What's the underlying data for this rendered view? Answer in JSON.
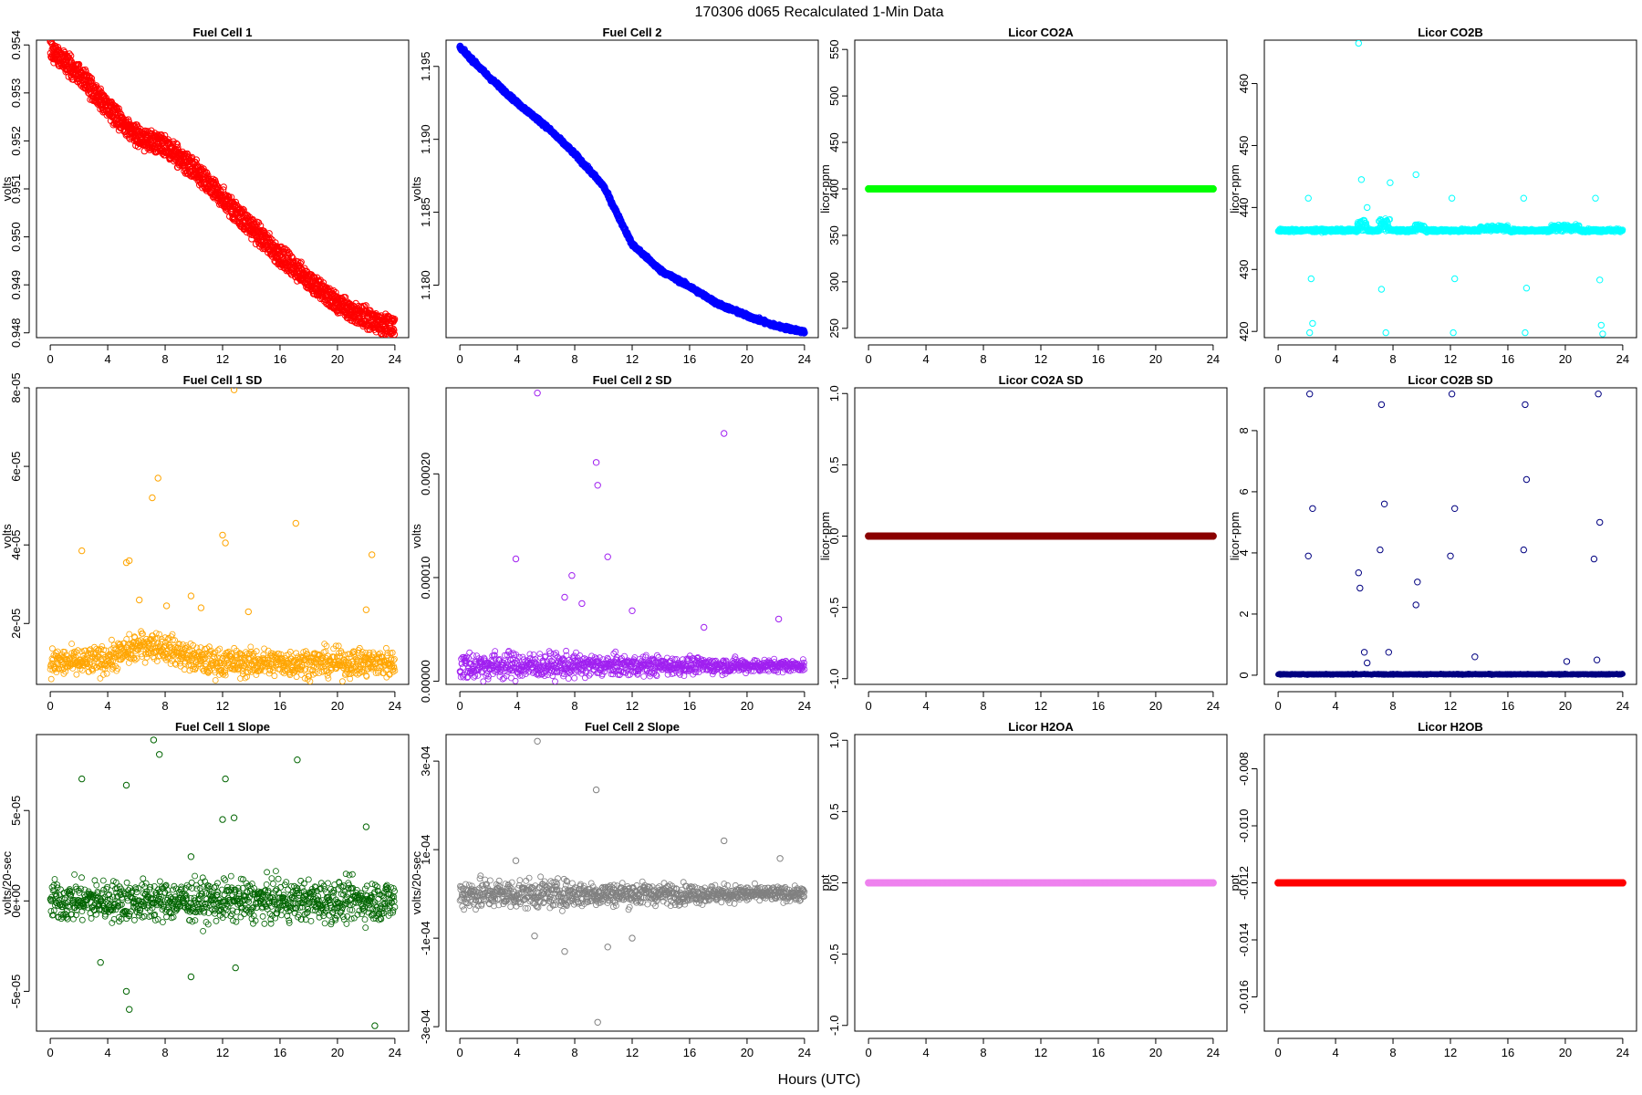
{
  "figure": {
    "title": "170306   d065   Recalculated 1-Min Data",
    "xlabel": "Hours (UTC)"
  },
  "chart_data": [
    {
      "type": "scatter",
      "title": "Fuel Cell 1",
      "xlabel": "",
      "ylabel": "volts",
      "color": "#ff0000",
      "xlim": [
        0,
        24
      ],
      "ylim": [
        0.9479,
        0.9541
      ],
      "xticks": [
        0,
        4,
        8,
        12,
        16,
        20,
        24
      ],
      "xtick_labels": [
        "0",
        "4",
        "8",
        "12",
        "16",
        "20",
        "24"
      ],
      "yticks": [
        0.948,
        0.949,
        0.95,
        0.951,
        0.952,
        0.953,
        0.954
      ],
      "ytick_labels": [
        "0.948",
        "0.949",
        "0.950",
        "0.951",
        "0.952",
        "0.953",
        "0.954"
      ],
      "series": [
        {
          "x": [
            0,
            2,
            4,
            6,
            8,
            10,
            12,
            14,
            16,
            18,
            20,
            22,
            24
          ],
          "y": [
            0.9539,
            0.9534,
            0.9527,
            0.9521,
            0.9519,
            0.9514,
            0.9508,
            0.9502,
            0.9496,
            0.9491,
            0.9486,
            0.9483,
            0.9481
          ]
        }
      ]
    },
    {
      "type": "scatter",
      "title": "Fuel Cell 2",
      "xlabel": "",
      "ylabel": "volts",
      "color": "#0000ff",
      "xlim": [
        0,
        24
      ],
      "ylim": [
        1.1764,
        1.1968
      ],
      "xticks": [
        0,
        4,
        8,
        12,
        16,
        20,
        24
      ],
      "xtick_labels": [
        "0",
        "4",
        "8",
        "12",
        "16",
        "20",
        "24"
      ],
      "yticks": [
        1.18,
        1.185,
        1.19,
        1.195
      ],
      "ytick_labels": [
        "1.180",
        "1.185",
        "1.190",
        "1.195"
      ],
      "series": [
        {
          "x": [
            0,
            2,
            4,
            6,
            8,
            10,
            12,
            14,
            16,
            18,
            20,
            22,
            24
          ],
          "y": [
            1.1963,
            1.1943,
            1.1925,
            1.1909,
            1.189,
            1.1868,
            1.1828,
            1.181,
            1.1799,
            1.1787,
            1.1779,
            1.1772,
            1.1768
          ]
        }
      ]
    },
    {
      "type": "scatter",
      "title": "Licor CO2A",
      "xlabel": "",
      "ylabel": "licor-ppm",
      "color": "#00ff00",
      "xlim": [
        0,
        24
      ],
      "ylim": [
        240,
        560
      ],
      "xticks": [
        0,
        4,
        8,
        12,
        16,
        20,
        24
      ],
      "xtick_labels": [
        "0",
        "4",
        "8",
        "12",
        "16",
        "20",
        "24"
      ],
      "yticks": [
        250,
        300,
        350,
        400,
        450,
        500,
        550
      ],
      "ytick_labels": [
        "250",
        "300",
        "350",
        "400",
        "450",
        "500",
        "550"
      ],
      "series": [
        {
          "x": [
            0,
            24
          ],
          "y": [
            400,
            400
          ]
        }
      ]
    },
    {
      "type": "scatter",
      "title": "Licor CO2B",
      "xlabel": "",
      "ylabel": "licor-ppm",
      "color": "#00ffff",
      "xlim": [
        0,
        24
      ],
      "ylim": [
        419,
        467
      ],
      "xticks": [
        0,
        4,
        8,
        12,
        16,
        20,
        24
      ],
      "xtick_labels": [
        "0",
        "4",
        "8",
        "12",
        "16",
        "20",
        "24"
      ],
      "yticks": [
        420,
        430,
        440,
        450,
        460
      ],
      "ytick_labels": [
        "420",
        "430",
        "440",
        "450",
        "460"
      ],
      "series": [
        {
          "x": [
            0,
            24
          ],
          "y": [
            436.3,
            436.3
          ]
        }
      ],
      "outliers": {
        "x": [
          2.1,
          2.3,
          2.2,
          2.4,
          5.6,
          5.8,
          6.2,
          7.2,
          7.5,
          7.8,
          9.6,
          12.1,
          12.3,
          12.2,
          17.1,
          17.3,
          17.2,
          22.1,
          22.4,
          22.5,
          22.6
        ],
        "y": [
          441.5,
          428.5,
          419.8,
          421.3,
          466.5,
          444.5,
          440.0,
          426.8,
          419.8,
          444.0,
          445.3,
          441.5,
          428.5,
          419.8,
          441.5,
          427.0,
          419.8,
          441.5,
          428.3,
          421.0,
          419.6
        ]
      }
    },
    {
      "type": "scatter",
      "title": "Fuel Cell 1 SD",
      "xlabel": "",
      "ylabel": "volts",
      "color": "#ffa500",
      "xlim": [
        0,
        24
      ],
      "ylim": [
        4.5e-06,
        8e-05
      ],
      "xticks": [
        0,
        4,
        8,
        12,
        16,
        20,
        24
      ],
      "xtick_labels": [
        "0",
        "4",
        "8",
        "12",
        "16",
        "20",
        "24"
      ],
      "yticks": [
        2e-05,
        4e-05,
        6e-05,
        8e-05
      ],
      "ytick_labels": [
        "2e-05",
        "4e-05",
        "6e-05",
        "8e-05"
      ],
      "series": [
        {
          "x": [
            0,
            24
          ],
          "y": [
            1e-05,
            1e-05
          ]
        }
      ],
      "outliers": {
        "x": [
          2.2,
          5.3,
          5.5,
          7.1,
          7.5,
          9.8,
          12.0,
          12.2,
          12.8,
          17.1,
          22.0,
          22.4,
          6.2,
          8.1,
          10.5,
          13.8
        ],
        "y": [
          3.85e-05,
          3.55e-05,
          3.6e-05,
          5.2e-05,
          5.7e-05,
          2.7e-05,
          4.25e-05,
          4.05e-05,
          7.95e-05,
          4.55e-05,
          2.35e-05,
          3.75e-05,
          2.6e-05,
          2.45e-05,
          2.4e-05,
          2.3e-05
        ]
      }
    },
    {
      "type": "scatter",
      "title": "Fuel Cell 2 SD",
      "xlabel": "",
      "ylabel": "volts",
      "color": "#a020f0",
      "xlim": [
        0,
        24
      ],
      "ylim": [
        -3e-06,
        0.000283
      ],
      "xticks": [
        0,
        4,
        8,
        12,
        16,
        20,
        24
      ],
      "xtick_labels": [
        "0",
        "4",
        "8",
        "12",
        "16",
        "20",
        "24"
      ],
      "yticks": [
        0.0,
        0.0001,
        0.0002
      ],
      "ytick_labels": [
        "0.00000",
        "0.00010",
        "0.00020"
      ],
      "series": [
        {
          "x": [
            0,
            24
          ],
          "y": [
            1.5e-05,
            1.5e-05
          ]
        }
      ],
      "outliers": {
        "x": [
          5.4,
          9.5,
          9.6,
          18.4,
          3.9,
          7.8,
          10.3,
          7.3,
          8.5,
          12.0,
          17.0,
          22.2
        ],
        "y": [
          0.000278,
          0.000211,
          0.000189,
          0.000239,
          0.000118,
          0.000102,
          0.00012,
          8.1e-05,
          7.5e-05,
          6.8e-05,
          5.2e-05,
          6e-05
        ]
      }
    },
    {
      "type": "scatter",
      "title": "Licor CO2A SD",
      "xlabel": "",
      "ylabel": "licor-ppm",
      "color": "#8b0000",
      "xlim": [
        0,
        24
      ],
      "ylim": [
        -1.04,
        1.04
      ],
      "xticks": [
        0,
        4,
        8,
        12,
        16,
        20,
        24
      ],
      "xtick_labels": [
        "0",
        "4",
        "8",
        "12",
        "16",
        "20",
        "24"
      ],
      "yticks": [
        -1.0,
        -0.5,
        0.0,
        0.5,
        1.0
      ],
      "ytick_labels": [
        "-1.0",
        "-0.5",
        "0.0",
        "0.5",
        "1.0"
      ],
      "series": [
        {
          "x": [
            0,
            24
          ],
          "y": [
            0,
            0
          ]
        }
      ]
    },
    {
      "type": "scatter",
      "title": "Licor CO2B SD",
      "xlabel": "",
      "ylabel": "licor-ppm",
      "color": "#000080",
      "xlim": [
        0,
        24
      ],
      "ylim": [
        -0.3,
        9.4
      ],
      "xticks": [
        0,
        4,
        8,
        12,
        16,
        20,
        24
      ],
      "xtick_labels": [
        "0",
        "4",
        "8",
        "12",
        "16",
        "20",
        "24"
      ],
      "yticks": [
        0,
        2,
        4,
        6,
        8
      ],
      "ytick_labels": [
        "0",
        "2",
        "4",
        "6",
        "8"
      ],
      "series": [
        {
          "x": [
            0,
            24
          ],
          "y": [
            0.03,
            0.03
          ]
        }
      ],
      "outliers": {
        "x": [
          2.1,
          2.2,
          2.4,
          5.6,
          5.7,
          6.0,
          6.2,
          7.1,
          7.2,
          7.4,
          7.7,
          9.6,
          9.7,
          12.0,
          12.1,
          12.3,
          13.7,
          17.1,
          17.2,
          17.3,
          20.1,
          22.0,
          22.3,
          22.4,
          22.2
        ],
        "y": [
          3.9,
          9.2,
          5.45,
          3.35,
          2.85,
          0.75,
          0.4,
          4.1,
          8.85,
          5.6,
          0.75,
          2.3,
          3.05,
          3.9,
          9.2,
          5.45,
          0.6,
          4.1,
          8.85,
          6.4,
          0.45,
          3.8,
          9.2,
          5.0,
          0.5
        ]
      }
    },
    {
      "type": "scatter",
      "title": "Fuel Cell 1 Slope",
      "xlabel": "",
      "ylabel": "volts/20-sec",
      "color": "#006400",
      "xlim": [
        0,
        24
      ],
      "ylim": [
        -7.2e-05,
        9.2e-05
      ],
      "xticks": [
        0,
        4,
        8,
        12,
        16,
        20,
        24
      ],
      "xtick_labels": [
        "0",
        "4",
        "8",
        "12",
        "16",
        "20",
        "24"
      ],
      "yticks": [
        -5e-05,
        0.0,
        5e-05
      ],
      "ytick_labels": [
        "-5e-05",
        "0e+00",
        "5e-05"
      ],
      "series": [
        {
          "x": [
            0,
            24
          ],
          "y": [
            0.0,
            0.0
          ]
        }
      ],
      "outliers": {
        "x": [
          2.2,
          5.3,
          7.2,
          7.6,
          9.8,
          12.0,
          12.2,
          12.8,
          17.2,
          22.0,
          22.6,
          5.3,
          5.5,
          3.5,
          9.8,
          12.9
        ],
        "y": [
          6.75e-05,
          6.4e-05,
          8.9e-05,
          8.1e-05,
          2.45e-05,
          4.5e-05,
          6.75e-05,
          4.6e-05,
          7.8e-05,
          4.1e-05,
          -6.9e-05,
          -5e-05,
          -6e-05,
          -3.4e-05,
          -4.2e-05,
          -3.7e-05
        ]
      }
    },
    {
      "type": "scatter",
      "title": "Fuel Cell 2 Slope",
      "xlabel": "",
      "ylabel": "volts/20-sec",
      "color": "#808080",
      "xlim": [
        0,
        24
      ],
      "ylim": [
        -0.00031,
        0.00036
      ],
      "xticks": [
        0,
        4,
        8,
        12,
        16,
        20,
        24
      ],
      "xtick_labels": [
        "0",
        "4",
        "8",
        "12",
        "16",
        "20",
        "24"
      ],
      "yticks": [
        -0.0003,
        -0.0001,
        0.0001,
        0.0003
      ],
      "ytick_labels": [
        "-3e-04",
        "-1e-04",
        "1e-04",
        "3e-04"
      ],
      "series": [
        {
          "x": [
            0,
            24
          ],
          "y": [
            0.0,
            0.0
          ]
        }
      ],
      "outliers": {
        "x": [
          5.4,
          9.5,
          9.6,
          18.4,
          22.3,
          7.3,
          10.3,
          12.0,
          3.9,
          5.2
        ],
        "y": [
          0.000345,
          0.000235,
          -0.00029,
          0.00012,
          8e-05,
          -0.00013,
          -0.00012,
          -0.0001,
          7.5e-05,
          -9.5e-05
        ]
      }
    },
    {
      "type": "scatter",
      "title": "Licor H2OA",
      "xlabel": "",
      "ylabel": "ppt",
      "color": "#ee82ee",
      "xlim": [
        0,
        24
      ],
      "ylim": [
        -1.04,
        1.04
      ],
      "xticks": [
        0,
        4,
        8,
        12,
        16,
        20,
        24
      ],
      "xtick_labels": [
        "0",
        "4",
        "8",
        "12",
        "16",
        "20",
        "24"
      ],
      "yticks": [
        -1.0,
        -0.5,
        0.0,
        0.5,
        1.0
      ],
      "ytick_labels": [
        "-1.0",
        "-0.5",
        "0.0",
        "0.5",
        "1.0"
      ],
      "series": [
        {
          "x": [
            0,
            24
          ],
          "y": [
            0,
            0
          ]
        }
      ]
    },
    {
      "type": "scatter",
      "title": "Licor H2OB",
      "xlabel": "",
      "ylabel": "ppt",
      "color": "#ff0000",
      "xlim": [
        0,
        24
      ],
      "ylim": [
        -0.0172,
        -0.0068
      ],
      "xticks": [
        0,
        4,
        8,
        12,
        16,
        20,
        24
      ],
      "xtick_labels": [
        "0",
        "4",
        "8",
        "12",
        "16",
        "20",
        "24"
      ],
      "yticks": [
        -0.016,
        -0.014,
        -0.012,
        -0.01,
        -0.008
      ],
      "ytick_labels": [
        "-0.016",
        "-0.014",
        "-0.012",
        "-0.010",
        "-0.008"
      ],
      "series": [
        {
          "x": [
            0,
            24
          ],
          "y": [
            -0.012,
            -0.012
          ]
        }
      ]
    }
  ]
}
